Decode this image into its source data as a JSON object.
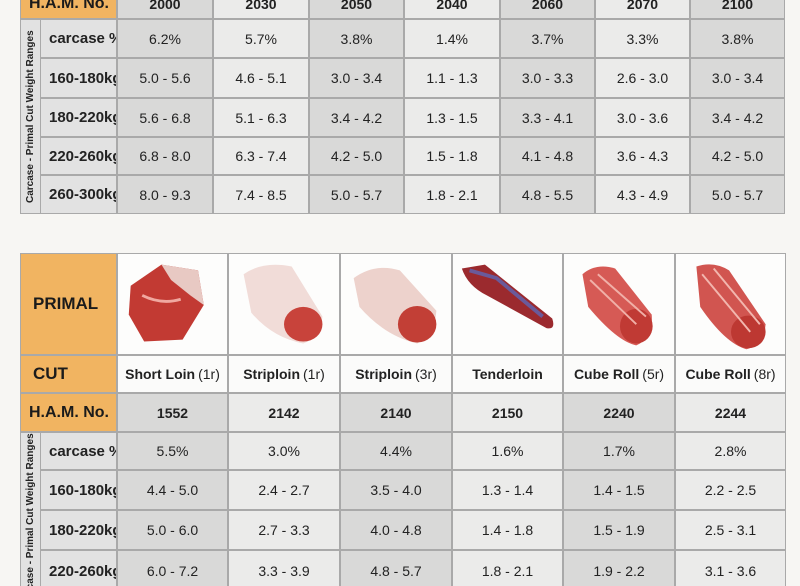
{
  "table1": {
    "header": {
      "label": "H.A.M. No.",
      "codes": [
        "2000",
        "2030",
        "2050",
        "2040",
        "2060",
        "2070",
        "2100"
      ]
    },
    "side_label": "Carcase - Primal Cut Weight Ranges",
    "rows": [
      {
        "label": "carcase %",
        "values": [
          "6.2%",
          "5.7%",
          "3.8%",
          "1.4%",
          "3.7%",
          "3.3%",
          "3.8%"
        ]
      },
      {
        "label": "160-180kg",
        "values": [
          "5.0 - 5.6",
          "4.6 - 5.1",
          "3.0 - 3.4",
          "1.1 - 1.3",
          "3.0 - 3.3",
          "2.6 - 3.0",
          "3.0 - 3.4"
        ]
      },
      {
        "label": "180-220kg",
        "values": [
          "5.6 - 6.8",
          "5.1 - 6.3",
          "3.4 - 4.2",
          "1.3 - 1.5",
          "3.3 - 4.1",
          "3.0 - 3.6",
          "3.4 - 4.2"
        ]
      },
      {
        "label": "220-260kg",
        "values": [
          "6.8 - 8.0",
          "6.3 - 7.4",
          "4.2 - 5.0",
          "1.5 - 1.8",
          "4.1 - 4.8",
          "3.6 - 4.3",
          "4.2 - 5.0"
        ]
      },
      {
        "label": "260-300kg",
        "values": [
          "8.0 - 9.3",
          "7.4 - 8.5",
          "5.0 - 5.7",
          "1.8 - 2.1",
          "4.8 - 5.5",
          "4.3 - 4.9",
          "5.0 - 5.7"
        ]
      }
    ]
  },
  "table2": {
    "primal_label": "PRIMAL",
    "cut_label": "CUT",
    "ham_label": "H.A.M. No.",
    "cuts": [
      {
        "name": "Short Loin",
        "spec": "(1r)"
      },
      {
        "name": "Striploin",
        "spec": "(1r)"
      },
      {
        "name": "Striploin",
        "spec": "(3r)"
      },
      {
        "name": "Tenderloin"
      },
      {
        "name": "Cube Roll",
        "spec": "(5r)"
      },
      {
        "name": "Cube Roll",
        "spec": "(8r)"
      }
    ],
    "codes": [
      "1552",
      "2142",
      "2140",
      "2150",
      "2240",
      "2244"
    ],
    "side_label": "Carcase - Primal Cut Weight Ranges",
    "rows": [
      {
        "label": "carcase %",
        "values": [
          "5.5%",
          "3.0%",
          "4.4%",
          "1.6%",
          "1.7%",
          "2.8%"
        ]
      },
      {
        "label": "160-180kg",
        "values": [
          "4.4 - 5.0",
          "2.4 - 2.7",
          "3.5 - 4.0",
          "1.3 - 1.4",
          "1.4 - 1.5",
          "2.2 - 2.5"
        ]
      },
      {
        "label": "180-220kg",
        "values": [
          "5.0 - 6.0",
          "2.7 - 3.3",
          "4.0 - 4.8",
          "1.4 - 1.8",
          "1.5 - 1.9",
          "2.5 - 3.1"
        ]
      },
      {
        "label": "220-260kg",
        "values": [
          "6.0 - 7.2",
          "3.3 - 3.9",
          "4.8 - 5.7",
          "1.8 - 2.1",
          "1.9 - 2.2",
          "3.1 - 3.6"
        ]
      }
    ]
  }
}
